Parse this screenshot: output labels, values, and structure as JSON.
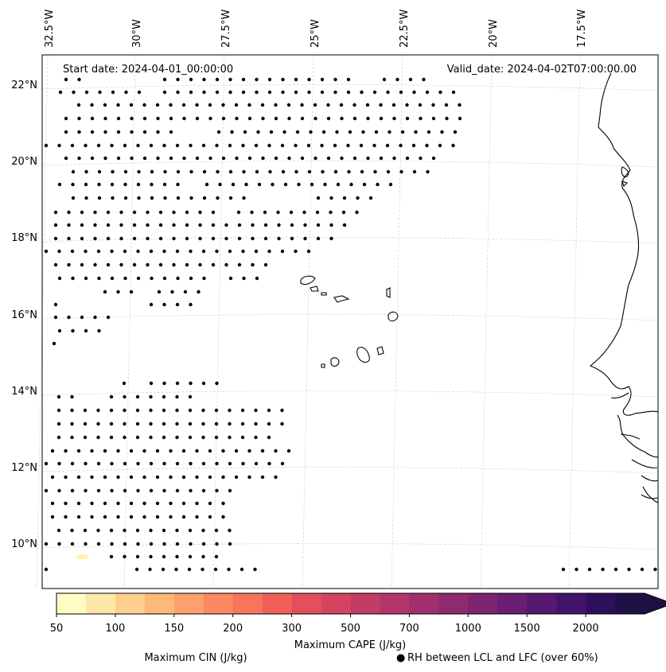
{
  "map": {
    "start_date": "Start date: 2024-04-01_00:00:00",
    "valid_date": "Valid_date: 2024-04-02T07:00:00.00",
    "lon_labels": [
      "32.5°W",
      "30°W",
      "27.5°W",
      "25°W",
      "22.5°W",
      "20°W",
      "17.5°W"
    ],
    "lat_labels": [
      "22°N",
      "20°N",
      "18°N",
      "16°N",
      "14°N",
      "12°N",
      "10°N"
    ],
    "gridline_color": "#cccccc",
    "dot_color": "#000000",
    "coast_color": "#000000"
  },
  "colorbar": {
    "label": "Maximum CAPE (J/kg)",
    "ticks": [
      "50",
      "100",
      "150",
      "200",
      "300",
      "500",
      "700",
      "1000",
      "1500",
      "2000"
    ],
    "colors": [
      "#fffdc3",
      "#fee8a8",
      "#fdd08e",
      "#fdb97a",
      "#fca16b",
      "#fb8961",
      "#f8755c",
      "#f06059",
      "#e3505d",
      "#d44461",
      "#c33c66",
      "#b3356a",
      "#a12f6d",
      "#8f2a6f",
      "#7d2470",
      "#6a1e71",
      "#571870",
      "#42136b",
      "#2d0f5b",
      "#1e0f45"
    ]
  },
  "legend": {
    "cin_label": "Maximum CIN (J/kg)",
    "cin_color": "#ff0000",
    "rh_label": "RH between LCL and LFC (over 60%)",
    "rh_marker": "●"
  }
}
